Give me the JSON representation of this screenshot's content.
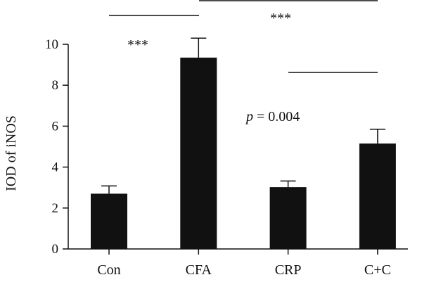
{
  "chart_data": {
    "type": "bar",
    "categories": [
      "Con",
      "CFA",
      "CRP",
      "C+C"
    ],
    "values": [
      2.7,
      9.35,
      3.02,
      5.15
    ],
    "errors": [
      0.38,
      0.95,
      0.3,
      0.7
    ],
    "ylabel": "IOD of iNOS",
    "xlabel": "",
    "ylim": [
      0,
      10
    ],
    "yticks": [
      0,
      2,
      4,
      6,
      8,
      10
    ],
    "grid": false,
    "bar_color": "#111111",
    "annotations": {
      "sig_con_cfa": "***",
      "sig_cfa_cc": "***",
      "p_prefix": "p",
      "p_value": " = 0.004"
    }
  }
}
